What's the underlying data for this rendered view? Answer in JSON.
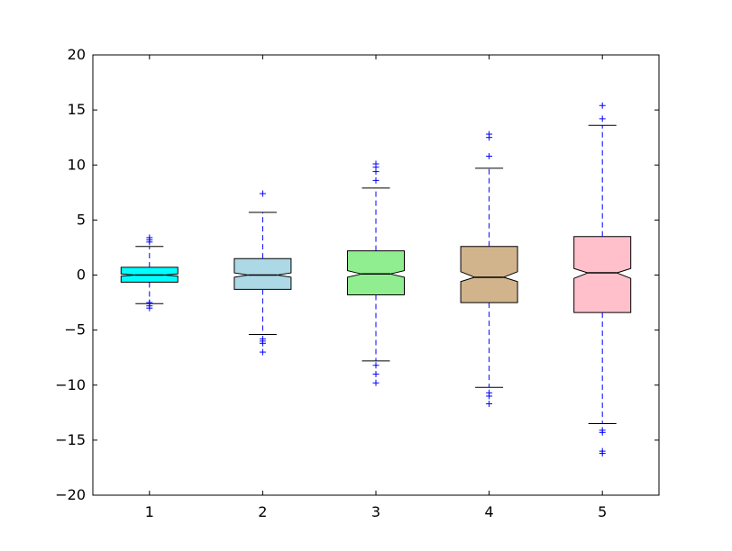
{
  "chart_data": {
    "type": "boxplot",
    "notched": true,
    "grid": false,
    "title": "",
    "xlabel": "",
    "ylabel": "",
    "ylim": [
      -20,
      20
    ],
    "y_ticks": [
      20,
      15,
      10,
      5,
      0,
      -5,
      -10,
      -15,
      -20
    ],
    "categories": [
      "1",
      "2",
      "3",
      "4",
      "5"
    ],
    "boxes": [
      {
        "category": "1",
        "color": "#00ffff",
        "whisker_low": -2.6,
        "q1": -0.65,
        "median": 0.0,
        "notch_low": -0.1,
        "notch_high": 0.1,
        "q3": 0.7,
        "whisker_high": 2.6,
        "outliers": [
          3.4,
          3.2,
          3.0,
          -2.5,
          -2.8,
          -3.0
        ]
      },
      {
        "category": "2",
        "color": "#add8e6",
        "whisker_low": -5.4,
        "q1": -1.3,
        "median": 0.0,
        "notch_low": -0.2,
        "notch_high": 0.2,
        "q3": 1.5,
        "whisker_high": 5.7,
        "outliers": [
          7.4,
          -5.8,
          -6.0,
          -6.2,
          -7.0
        ]
      },
      {
        "category": "3",
        "color": "#90ee90",
        "whisker_low": -7.8,
        "q1": -1.8,
        "median": 0.1,
        "notch_low": -0.2,
        "notch_high": 0.4,
        "q3": 2.2,
        "whisker_high": 7.9,
        "outliers": [
          10.1,
          9.8,
          9.4,
          8.6,
          -8.2,
          -9.0,
          -9.8
        ]
      },
      {
        "category": "4",
        "color": "#d2b48c",
        "whisker_low": -10.2,
        "q1": -2.5,
        "median": -0.2,
        "notch_low": -0.6,
        "notch_high": 0.3,
        "q3": 2.6,
        "whisker_high": 9.7,
        "outliers": [
          12.8,
          12.5,
          10.8,
          -10.7,
          -11.0,
          -11.7
        ]
      },
      {
        "category": "5",
        "color": "#ffc0cb",
        "whisker_low": -13.5,
        "q1": -3.4,
        "median": 0.2,
        "notch_low": -0.3,
        "notch_high": 0.6,
        "q3": 3.5,
        "whisker_high": 13.6,
        "outliers": [
          15.4,
          14.2,
          -14.1,
          -14.3,
          -16.0,
          -16.2
        ]
      }
    ]
  }
}
